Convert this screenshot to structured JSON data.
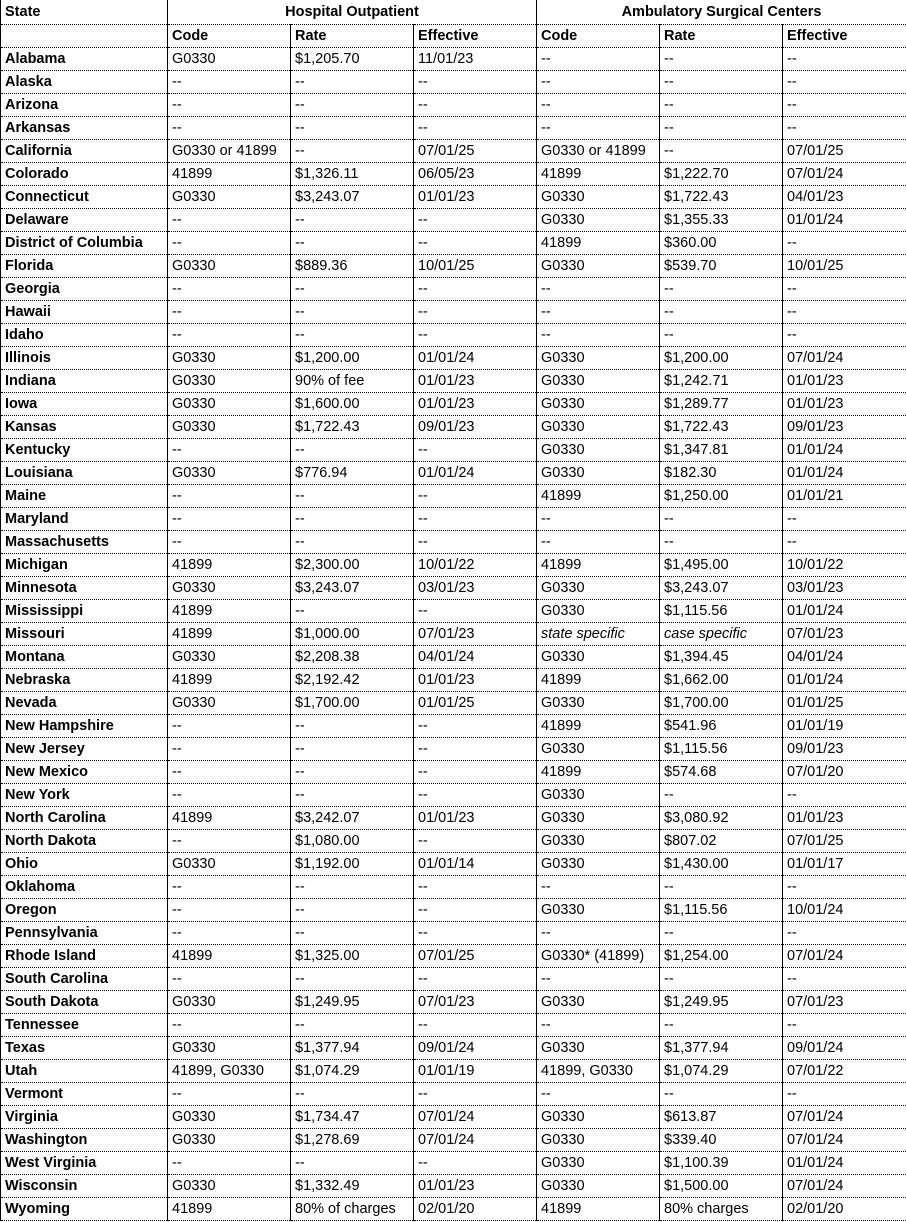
{
  "table": {
    "state_header": "State",
    "groups": [
      "Hospital Outpatient",
      "Ambulatory Surgical Centers"
    ],
    "columns": [
      "Code",
      "Rate",
      "Effective",
      "Code",
      "Rate",
      "Effective"
    ],
    "rows": [
      [
        "Alabama",
        "G0330",
        "$1,205.70",
        "11/01/23",
        "--",
        "--",
        "--"
      ],
      [
        "Alaska",
        "--",
        "--",
        "--",
        "--",
        "--",
        "--"
      ],
      [
        "Arizona",
        "--",
        "--",
        "--",
        "--",
        "--",
        "--"
      ],
      [
        "Arkansas",
        "--",
        "--",
        "--",
        "--",
        "--",
        "--"
      ],
      [
        "California",
        "G0330 or 41899",
        "--",
        "07/01/25",
        "G0330 or 41899",
        "--",
        "07/01/25"
      ],
      [
        "Colorado",
        "41899",
        "$1,326.11",
        "06/05/23",
        "41899",
        "$1,222.70",
        "07/01/24"
      ],
      [
        "Connecticut",
        "G0330",
        "$3,243.07",
        "01/01/23",
        "G0330",
        "$1,722.43",
        "04/01/23"
      ],
      [
        "Delaware",
        "--",
        "--",
        "--",
        "G0330",
        "$1,355.33",
        "01/01/24"
      ],
      [
        "District of Columbia",
        "--",
        "--",
        "--",
        "41899",
        "$360.00",
        "--"
      ],
      [
        "Florida",
        "G0330",
        "$889.36",
        "10/01/25",
        "G0330",
        "$539.70",
        "10/01/25"
      ],
      [
        "Georgia",
        "--",
        "--",
        "--",
        "--",
        "--",
        "--"
      ],
      [
        "Hawaii",
        "--",
        "--",
        "--",
        "--",
        "--",
        "--"
      ],
      [
        "Idaho",
        "--",
        "--",
        "--",
        "--",
        "--",
        "--"
      ],
      [
        "Illinois",
        "G0330",
        "$1,200.00",
        "01/01/24",
        "G0330",
        "$1,200.00",
        "07/01/24"
      ],
      [
        "Indiana",
        "G0330",
        "90% of fee",
        "01/01/23",
        "G0330",
        "$1,242.71",
        "01/01/23"
      ],
      [
        "Iowa",
        "G0330",
        "$1,600.00",
        "01/01/23",
        "G0330",
        "$1,289.77",
        "01/01/23"
      ],
      [
        "Kansas",
        "G0330",
        "$1,722.43",
        "09/01/23",
        "G0330",
        "$1,722.43",
        "09/01/23"
      ],
      [
        "Kentucky",
        "--",
        "--",
        "--",
        "G0330",
        "$1,347.81",
        "01/01/24"
      ],
      [
        "Louisiana",
        "G0330",
        "$776.94",
        "01/01/24",
        "G0330",
        "$182.30",
        "01/01/24"
      ],
      [
        "Maine",
        "--",
        "--",
        "--",
        "41899",
        "$1,250.00",
        "01/01/21"
      ],
      [
        "Maryland",
        "--",
        "--",
        "--",
        "--",
        "--",
        "--"
      ],
      [
        "Massachusetts",
        "--",
        "--",
        "--",
        "--",
        "--",
        "--"
      ],
      [
        "Michigan",
        "41899",
        "$2,300.00",
        "10/01/22",
        "41899",
        "$1,495.00",
        "10/01/22"
      ],
      [
        "Minnesota",
        "G0330",
        "$3,243.07",
        "03/01/23",
        "G0330",
        "$3,243.07",
        "03/01/23"
      ],
      [
        "Mississippi",
        "41899",
        "--",
        "--",
        "G0330",
        "$1,115.56",
        "01/01/24"
      ],
      [
        "Missouri",
        "41899",
        "$1,000.00",
        "07/01/23",
        "state specific",
        "case specific",
        "07/01/23"
      ],
      [
        "Montana",
        "G0330",
        "$2,208.38",
        "04/01/24",
        "G0330",
        "$1,394.45",
        "04/01/24"
      ],
      [
        "Nebraska",
        "41899",
        "$2,192.42",
        "01/01/23",
        "41899",
        "$1,662.00",
        "01/01/24"
      ],
      [
        "Nevada",
        "G0330",
        "$1,700.00",
        "01/01/25",
        "G0330",
        "$1,700.00",
        "01/01/25"
      ],
      [
        "New Hampshire",
        "--",
        "--",
        "--",
        "41899",
        "$541.96",
        "01/01/19"
      ],
      [
        "New Jersey",
        "--",
        "--",
        "--",
        "G0330",
        "$1,115.56",
        "09/01/23"
      ],
      [
        "New Mexico",
        "--",
        "--",
        "--",
        "41899",
        "$574.68",
        "07/01/20"
      ],
      [
        "New York",
        "--",
        "--",
        "--",
        "G0330",
        "--",
        "--"
      ],
      [
        "North Carolina",
        "41899",
        "$3,242.07",
        "01/01/23",
        "G0330",
        "$3,080.92",
        "01/01/23"
      ],
      [
        "North Dakota",
        "--",
        "$1,080.00",
        "--",
        "G0330",
        "$807.02",
        "07/01/25"
      ],
      [
        "Ohio",
        "G0330",
        "$1,192.00",
        "01/01/14",
        "G0330",
        "$1,430.00",
        "01/01/17"
      ],
      [
        "Oklahoma",
        "--",
        "--",
        "--",
        "--",
        "--",
        "--"
      ],
      [
        "Oregon",
        "--",
        "--",
        "--",
        "G0330",
        "$1,115.56",
        "10/01/24"
      ],
      [
        "Pennsylvania",
        "--",
        "--",
        "--",
        "--",
        "--",
        "--"
      ],
      [
        "Rhode Island",
        "41899",
        "$1,325.00",
        "07/01/25",
        "G0330* (41899)",
        "$1,254.00",
        "07/01/24"
      ],
      [
        "South Carolina",
        "--",
        "--",
        "--",
        "--",
        "--",
        "--"
      ],
      [
        "South Dakota",
        "G0330",
        "$1,249.95",
        "07/01/23",
        "G0330",
        "$1,249.95",
        "07/01/23"
      ],
      [
        "Tennessee",
        "--",
        "--",
        "--",
        "--",
        "--",
        "--"
      ],
      [
        "Texas",
        "G0330",
        "$1,377.94",
        "09/01/24",
        "G0330",
        "$1,377.94",
        "09/01/24"
      ],
      [
        "Utah",
        "41899, G0330",
        "$1,074.29",
        "01/01/19",
        "41899, G0330",
        "$1,074.29",
        "07/01/22"
      ],
      [
        "Vermont",
        "--",
        "--",
        "--",
        "--",
        "--",
        "--"
      ],
      [
        "Virginia",
        "G0330",
        "$1,734.47",
        "07/01/24",
        "G0330",
        "$613.87",
        "07/01/24"
      ],
      [
        "Washington",
        "G0330",
        "$1,278.69",
        "07/01/24",
        "G0330",
        "$339.40",
        "07/01/24"
      ],
      [
        "West Virginia",
        "--",
        "--",
        "--",
        "G0330",
        "$1,100.39",
        "01/01/24"
      ],
      [
        "Wisconsin",
        "G0330",
        "$1,332.49",
        "01/01/23",
        "G0330",
        "$1,500.00",
        "07/01/24"
      ],
      [
        "Wyoming",
        "41899",
        "80% of charges",
        "02/01/20",
        "41899",
        "80% charges",
        "02/01/20"
      ]
    ]
  }
}
